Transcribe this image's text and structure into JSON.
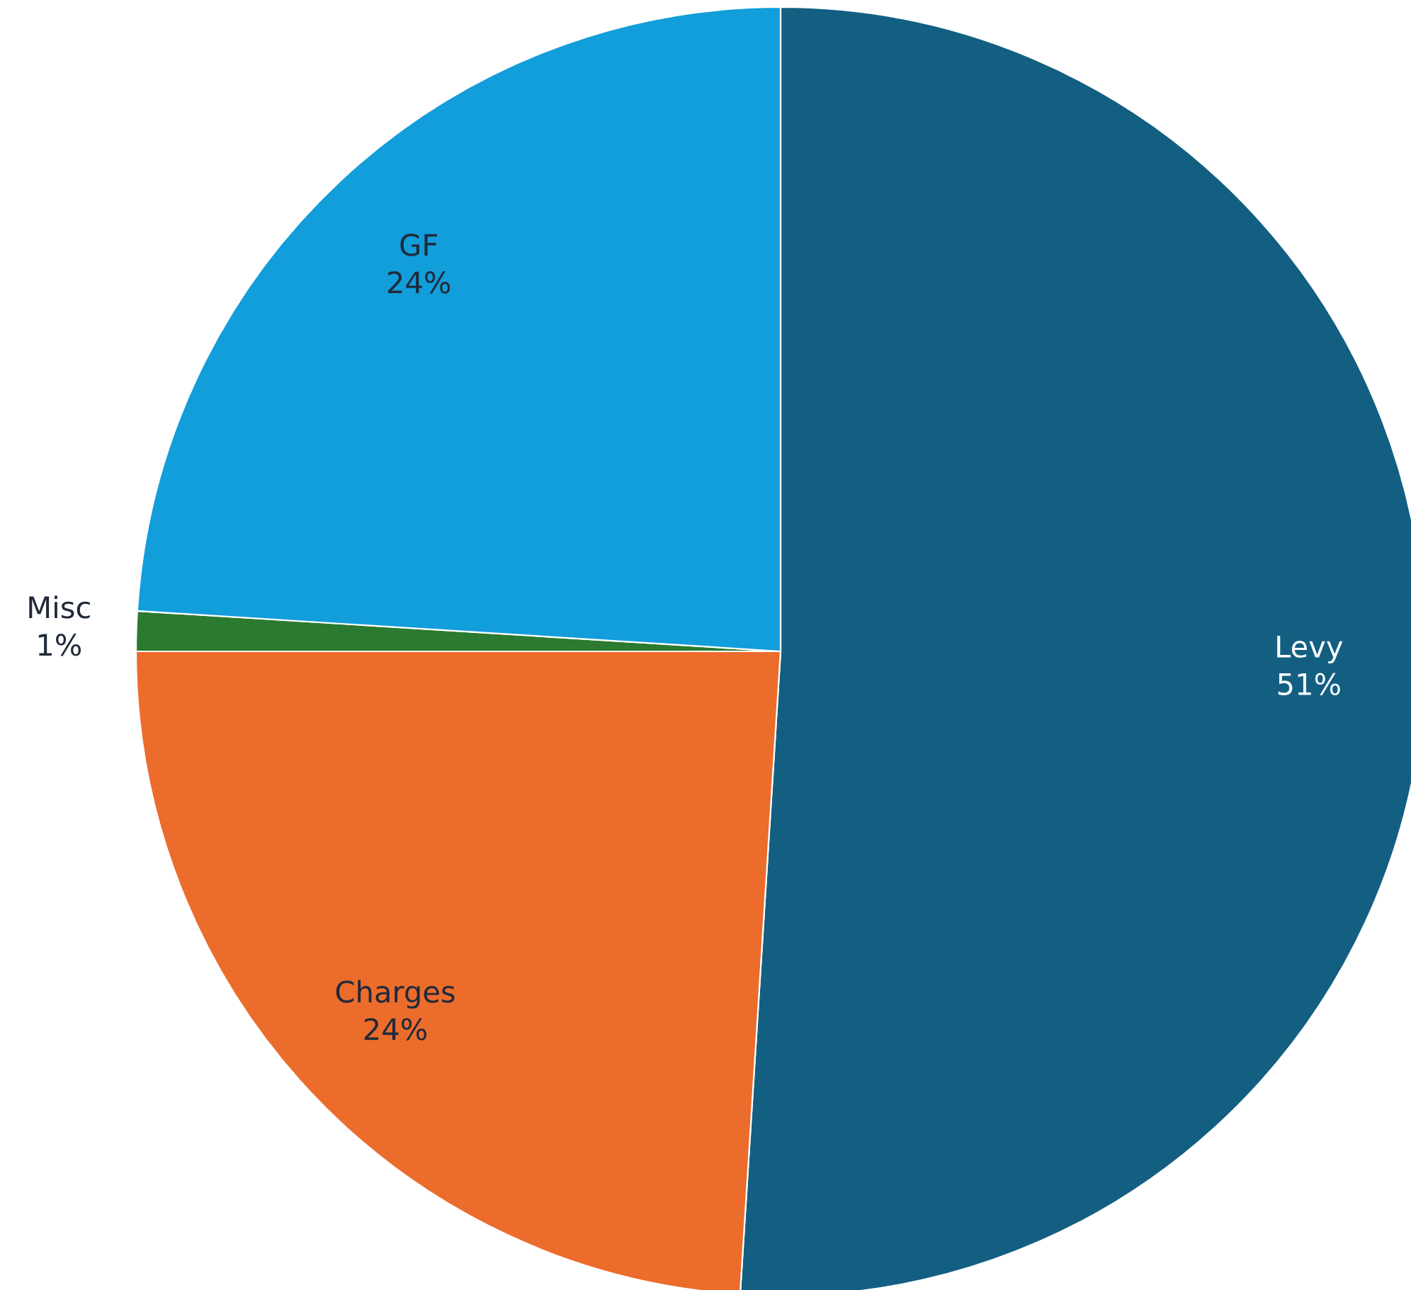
{
  "chart_data": {
    "type": "pie",
    "categories": [
      "Levy",
      "Charges",
      "Misc",
      "GF"
    ],
    "values": [
      51,
      24,
      1,
      24
    ],
    "value_labels": [
      "51%",
      "24%",
      "1%",
      "24%"
    ],
    "colors": [
      "#135f82",
      "#ec6c2c",
      "#2b7a2f",
      "#129ddb"
    ]
  }
}
